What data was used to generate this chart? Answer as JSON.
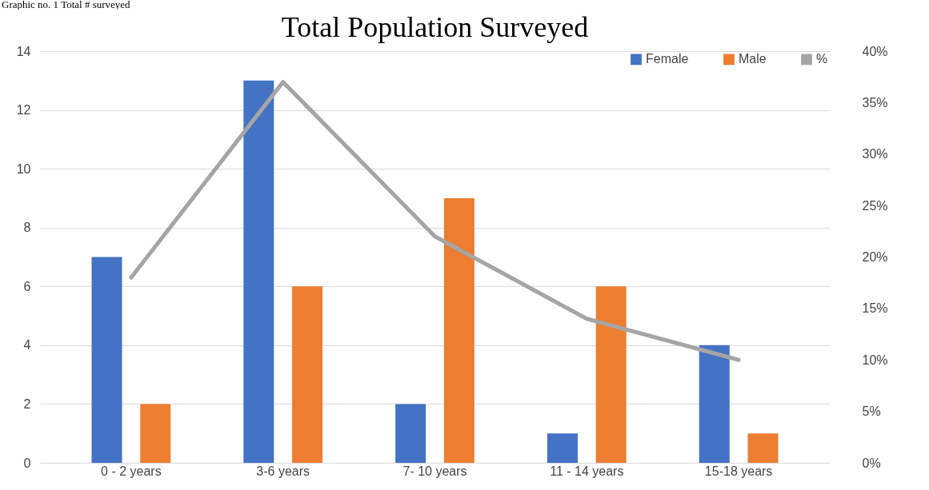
{
  "chart_data": {
    "type": "bar",
    "title": "Total Population Surveyed",
    "annotations": [
      "Graphic no. 1 Total # surveyed"
    ],
    "categories": [
      "0 - 2 years",
      "3-6 years",
      "7- 10 years",
      "11 - 14 years",
      "15-18 years"
    ],
    "series": [
      {
        "name": "Female",
        "color": "#4472c4",
        "values": [
          7,
          13,
          2,
          1,
          4
        ]
      },
      {
        "name": "Male",
        "color": "#ed7d31",
        "values": [
          2,
          6,
          9,
          6,
          1
        ]
      },
      {
        "name": "%",
        "type": "line",
        "axis": "y2",
        "color": "#a5a5a5",
        "values": [
          18,
          37,
          22,
          14,
          10
        ]
      }
    ],
    "ylim": [
      0,
      14
    ],
    "yticks": [
      0,
      2,
      4,
      6,
      8,
      10,
      12,
      14
    ],
    "y2lim": [
      0,
      40
    ],
    "y2ticks": [
      {
        "value": 0,
        "label": "0%"
      },
      {
        "value": 5,
        "label": "5%"
      },
      {
        "value": 10,
        "label": "10%"
      },
      {
        "value": 15,
        "label": "15%"
      },
      {
        "value": 20,
        "label": "20%"
      },
      {
        "value": 25,
        "label": "25%"
      },
      {
        "value": 30,
        "label": "30%"
      },
      {
        "value": 35,
        "label": "35%"
      },
      {
        "value": 40,
        "label": "40%"
      }
    ],
    "grid": "y",
    "legend": "top right",
    "marker": "none",
    "line_style": "solid"
  }
}
